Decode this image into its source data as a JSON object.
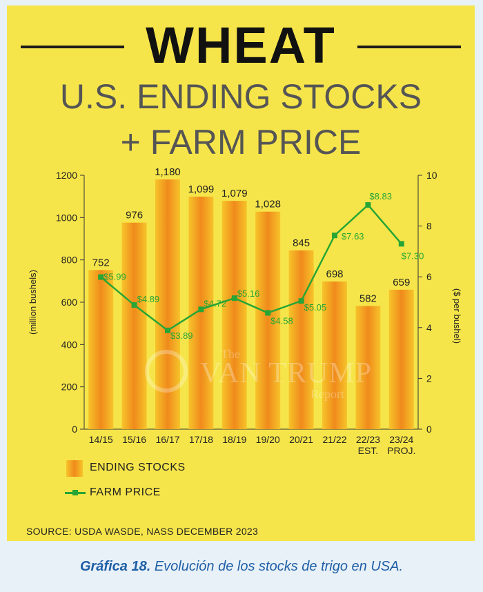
{
  "header": {
    "title": "WHEAT",
    "subtitle_line1": "U.S. ENDING STOCKS",
    "subtitle_line2": "+ FARM PRICE"
  },
  "legend": {
    "stocks": "ENDING STOCKS",
    "price": "FARM PRICE"
  },
  "source": "SOURCE: USDA WASDE, NASS DECEMBER 2023",
  "caption": {
    "label": "Gráfica 18.",
    "text": "Evolución de los stocks de trigo en USA."
  },
  "watermark": {
    "the": "The",
    "name": "VAN TRUMP",
    "report": "Report"
  },
  "colors": {
    "background": "#f6e54a",
    "bar_edge": "#f6c42a",
    "bar_core": "#f08a1c",
    "price_line": "#27a535",
    "caption": "#1f5fa6"
  },
  "chart_data": {
    "type": "bar",
    "categories": [
      [
        "14/15"
      ],
      [
        "15/16"
      ],
      [
        "16/17"
      ],
      [
        "17/18"
      ],
      [
        "18/19"
      ],
      [
        "19/20"
      ],
      [
        "20/21"
      ],
      [
        "21/22"
      ],
      [
        "22/23",
        "EST."
      ],
      [
        "23/24",
        "PROJ."
      ]
    ],
    "series": [
      {
        "name": "ENDING STOCKS",
        "type": "bar",
        "axis": "left",
        "values": [
          752,
          976,
          1180,
          1099,
          1079,
          1028,
          845,
          698,
          582,
          659
        ],
        "labels": [
          "752",
          "976",
          "1,180",
          "1,099",
          "1,079",
          "1,028",
          "845",
          "698",
          "582",
          "659"
        ]
      },
      {
        "name": "FARM PRICE",
        "type": "line",
        "axis": "right",
        "values": [
          5.99,
          4.89,
          3.89,
          4.72,
          5.16,
          4.58,
          5.05,
          7.63,
          8.83,
          7.3
        ],
        "labels": [
          "$5.99",
          "$4.89",
          "$3.89",
          "$4.72",
          "$5.16",
          "$4.58",
          "$5.05",
          "$7.63",
          "$8.83",
          "$7.30"
        ]
      }
    ],
    "ylabel": "(million bushels)",
    "y2label": "($ per bushel)",
    "ylim": [
      0,
      1200
    ],
    "y2lim": [
      0,
      10
    ],
    "yticks": [
      0,
      200,
      400,
      600,
      800,
      1000,
      1200
    ],
    "y2ticks": [
      0,
      2,
      4,
      6,
      8,
      10
    ],
    "grid": false
  }
}
